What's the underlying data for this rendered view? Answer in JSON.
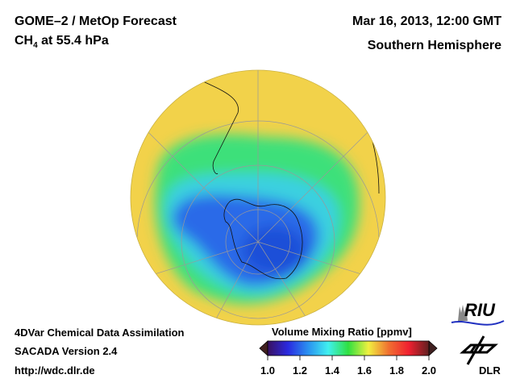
{
  "header": {
    "title_left": "GOME–2 / MetOp Forecast",
    "species_main": "CH",
    "species_sub": "4",
    "species_rest": " at 55.4 hPa",
    "datetime": "Mar 16, 2013, 12:00 GMT",
    "region": "Southern Hemisphere"
  },
  "footer": {
    "line1": "4DVar Chemical Data Assimilation",
    "line2": "SACADA Version 2.4",
    "line3": "http://wdc.dlr.de"
  },
  "colorbar": {
    "title": "Volume Mixing Ratio [ppmv]",
    "min": 1.0,
    "max": 2.0,
    "ticks": [
      "1.0",
      "1.2",
      "1.4",
      "1.6",
      "1.8",
      "2.0"
    ],
    "colors": [
      "#3a1060",
      "#2a2ae0",
      "#2a90f0",
      "#40f0f0",
      "#30e040",
      "#f0f040",
      "#f07030",
      "#f02030",
      "#602020"
    ]
  },
  "logos": {
    "riu": "RIU",
    "dlr": "DLR"
  },
  "map_colors": {
    "background": "#f2d24a",
    "ring": "#3ee07a",
    "inner": "#3ad0e0",
    "core": "#2a6ae8",
    "deep": "#1f50d8"
  }
}
